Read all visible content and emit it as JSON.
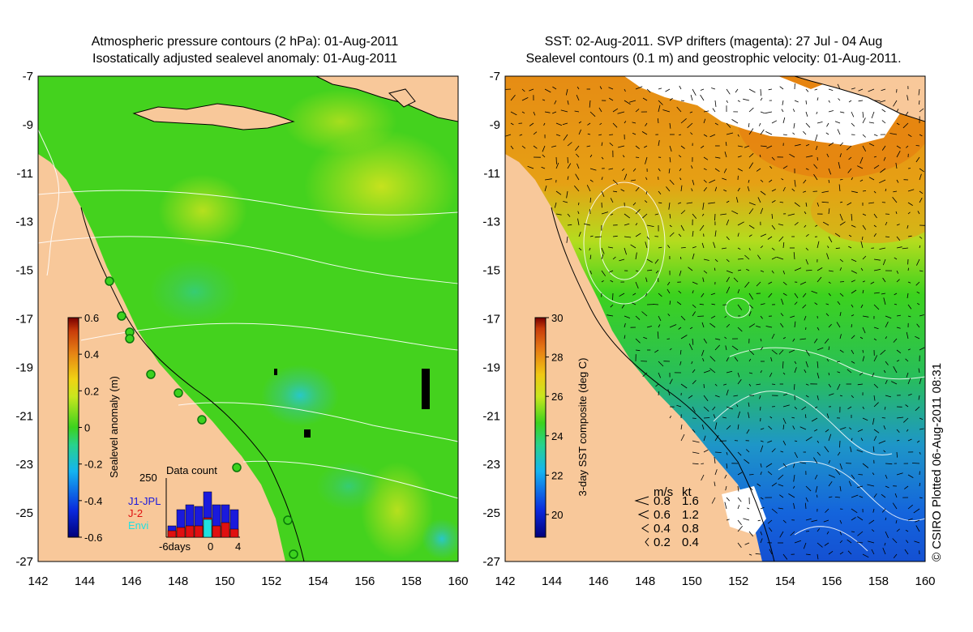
{
  "left_panel": {
    "title_line1": "Atmospheric pressure contours (2 hPa): 01-Aug-2011",
    "title_line2": "Isostatically adjusted sealevel anomaly: 01-Aug-2011",
    "colorbar": {
      "label": "Sealevel anomaly (m)",
      "ticks": [
        "0.6",
        "0.4",
        "0.2",
        "0",
        "-0.2",
        "-0.4",
        "-0.6"
      ]
    },
    "histogram": {
      "title": "Data count",
      "ymax_label": "250",
      "x_labels": [
        "-6days",
        "0",
        "4"
      ],
      "legend": [
        {
          "name": "J1-JPL",
          "color": "#1a1adc"
        },
        {
          "name": "J-2",
          "color": "#e01010"
        },
        {
          "name": "Envi",
          "color": "#20e0e0"
        }
      ]
    }
  },
  "right_panel": {
    "title_line1": "SST: 02-Aug-2011. SVP drifters (magenta): 27 Jul - 04 Aug",
    "title_line2": "Sealevel contours (0.1 m) and geostrophic velocity: 01-Aug-2011.",
    "colorbar": {
      "label": "3-day SST composite (deg C)",
      "ticks": [
        "30",
        "28",
        "26",
        "24",
        "22",
        "20"
      ]
    },
    "velocity_legend": {
      "header_ms": "m/s",
      "header_kt": "kt",
      "rows": [
        {
          "ms": "0.8",
          "kt": "1.6"
        },
        {
          "ms": "0.6",
          "kt": "1.2"
        },
        {
          "ms": "0.4",
          "kt": "0.8"
        },
        {
          "ms": "0.2",
          "kt": "0.4"
        }
      ]
    }
  },
  "y_axis_labels": [
    "-7",
    "-9",
    "-11",
    "-13",
    "-15",
    "-17",
    "-19",
    "-21",
    "-23",
    "-25",
    "-27"
  ],
  "x_axis_labels": [
    "142",
    "144",
    "146",
    "148",
    "150",
    "152",
    "154",
    "156",
    "158",
    "160"
  ],
  "credit": "© CSIRO Plotted 06-Aug-2011 08:31",
  "colors": {
    "land": "#f8c89a",
    "sea_green": "#3cd21e",
    "sea_yellow": "#dce61e",
    "sea_orange": "#e68c14",
    "sea_blue": "#145adc"
  }
}
